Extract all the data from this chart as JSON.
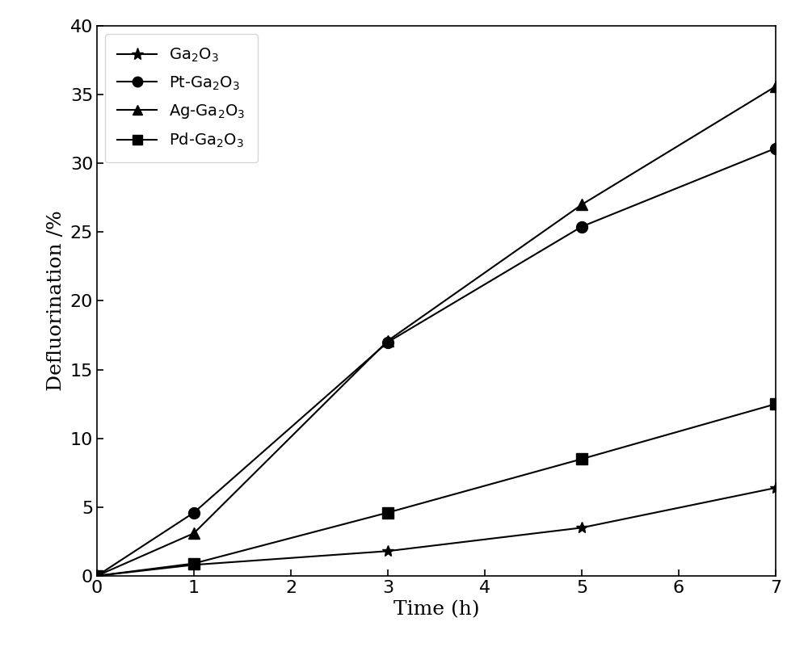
{
  "series": [
    {
      "label_main": "Ga",
      "label_sub": "2",
      "label_suffix": "O$_3$",
      "label_prefix": "",
      "x": [
        0,
        1,
        3,
        5,
        7
      ],
      "y": [
        0,
        0.8,
        1.8,
        3.5,
        6.4
      ],
      "marker": "star",
      "color": "black",
      "linestyle": "-"
    },
    {
      "label_main": "Ga",
      "label_sub": "2",
      "label_suffix": "O$_3$",
      "label_prefix": "Pt-",
      "x": [
        0,
        1,
        3,
        5,
        7
      ],
      "y": [
        0,
        4.6,
        17.0,
        25.4,
        31.1
      ],
      "marker": "circle",
      "color": "black",
      "linestyle": "-"
    },
    {
      "label_main": "Ga",
      "label_sub": "2",
      "label_suffix": "O$_3$",
      "label_prefix": "Ag-",
      "x": [
        0,
        1,
        3,
        5,
        7
      ],
      "y": [
        0,
        3.1,
        17.1,
        27.0,
        35.6
      ],
      "marker": "triangle",
      "color": "black",
      "linestyle": "-"
    },
    {
      "label_main": "Ga",
      "label_sub": "2",
      "label_suffix": "O$_3$",
      "label_prefix": "Pd-",
      "x": [
        0,
        1,
        3,
        5,
        7
      ],
      "y": [
        0,
        0.9,
        4.6,
        8.5,
        12.5
      ],
      "marker": "square",
      "color": "black",
      "linestyle": "-"
    }
  ],
  "legend_labels": [
    "Ga$_2$O$_3$",
    "Pt-Ga$_2$O$_3$",
    "Ag-Ga$_2$O$_3$",
    "Pd-Ga$_2$O$_3$"
  ],
  "xlabel": "Time (h)",
  "ylabel": "Defluorination /%",
  "xlim": [
    0,
    7
  ],
  "ylim": [
    0,
    40
  ],
  "xticks": [
    0,
    1,
    2,
    3,
    4,
    5,
    6,
    7
  ],
  "yticks": [
    0,
    5,
    10,
    15,
    20,
    25,
    30,
    35,
    40
  ],
  "background_color": "#ffffff",
  "linewidth": 1.5,
  "markersize": 10
}
